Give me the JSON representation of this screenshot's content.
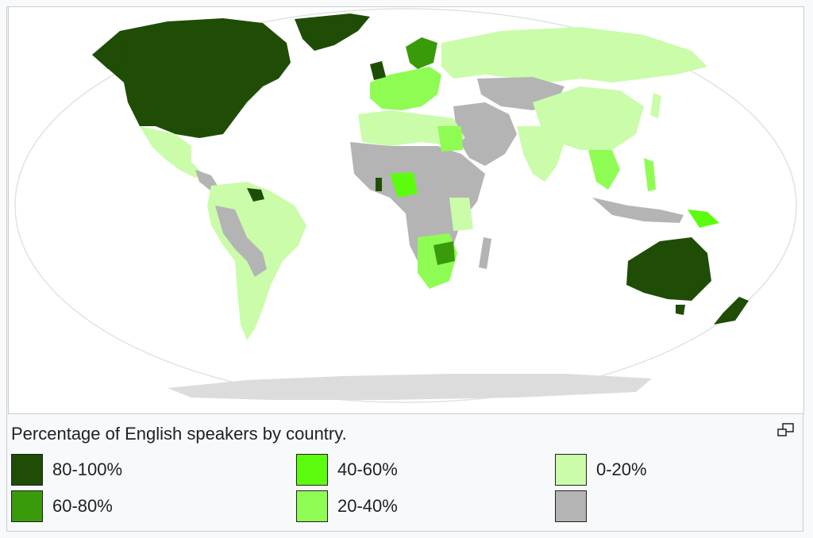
{
  "caption": "Percentage of English speakers by country.",
  "enlarge_icon": "enlarge-icon",
  "legend": [
    {
      "label": "80-100%",
      "color": "#1f4d06"
    },
    {
      "label": "60-80%",
      "color": "#3a9b0a"
    },
    {
      "label": "40-60%",
      "color": "#5cfc0e"
    },
    {
      "label": "20-40%",
      "color": "#8ffc54"
    },
    {
      "label": "0-20%",
      "color": "#cafcaa"
    },
    {
      "label": "",
      "color": "#b4b4b4"
    }
  ],
  "map": {
    "ocean_color": "#ffffff",
    "antarctica_color": "#dcdcdc"
  }
}
